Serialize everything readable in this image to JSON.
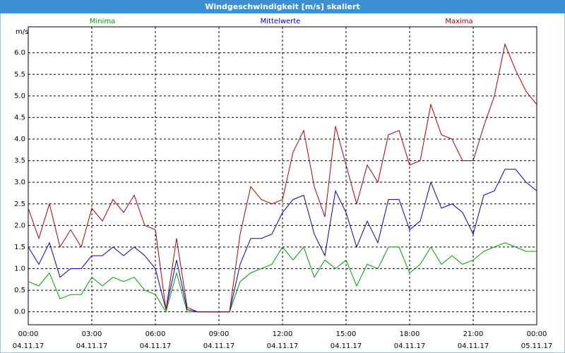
{
  "chart_data": {
    "type": "line",
    "title": "Windgeschwindigkeit [m/s] skaliert",
    "y_label": "m/s",
    "xlim": [
      0,
      24
    ],
    "ylim": [
      -0.3,
      6.6
    ],
    "xticks": [
      {
        "value": 0,
        "label": "00:00"
      },
      {
        "value": 3,
        "label": "03:00"
      },
      {
        "value": 6,
        "label": "06:00"
      },
      {
        "value": 9,
        "label": "09:00"
      },
      {
        "value": 12,
        "label": "12:00"
      },
      {
        "value": 15,
        "label": "15:00"
      },
      {
        "value": 18,
        "label": "18:00"
      },
      {
        "value": 21,
        "label": "21:00"
      },
      {
        "value": 24,
        "label": "00:00"
      }
    ],
    "xtick_dates": [
      "04.11.17",
      "04.11.17",
      "04.11.17",
      "04.11.17",
      "04.11.17",
      "04.11.17",
      "04.11.17",
      "04.11.17",
      "05.11.17"
    ],
    "yticks": [
      {
        "value": 0,
        "label": "0.0"
      },
      0.5,
      {
        "value": 1,
        "label": "1.0"
      },
      1.5,
      {
        "value": 2,
        "label": "2.0"
      },
      2.5,
      {
        "value": 3,
        "label": "3.0"
      },
      3.5,
      {
        "value": 4,
        "label": "4.0"
      },
      4.5,
      {
        "value": 5,
        "label": "5.0"
      },
      5.5,
      {
        "value": 6,
        "label": "6.0"
      }
    ],
    "grid": true,
    "x": [
      0,
      0.5,
      1,
      1.5,
      2,
      2.5,
      3,
      3.5,
      4,
      4.5,
      5,
      5.5,
      6,
      6.5,
      7,
      7.5,
      8,
      8.5,
      9,
      9.5,
      10,
      10.5,
      11,
      11.5,
      12,
      12.5,
      13,
      13.5,
      14,
      14.5,
      15,
      15.5,
      16,
      16.5,
      17,
      17.5,
      18,
      18.5,
      19,
      19.5,
      20,
      20.5,
      21,
      21.5,
      22,
      22.5,
      23,
      23.5,
      24
    ],
    "series": [
      {
        "name": "Minima",
        "color": "#00a000",
        "values": [
          0.7,
          0.6,
          0.9,
          0.3,
          0.4,
          0.4,
          0.8,
          0.6,
          0.8,
          0.7,
          0.8,
          0.5,
          0.4,
          0.0,
          0.9,
          0.0,
          0,
          0,
          0,
          0,
          0.7,
          0.9,
          1.0,
          1.1,
          1.5,
          1.2,
          1.5,
          0.8,
          1.2,
          1.0,
          1.2,
          0.6,
          1.1,
          1.0,
          1.5,
          1.5,
          0.9,
          1.1,
          1.5,
          1.1,
          1.3,
          1.1,
          1.2,
          1.4,
          1.5,
          1.6,
          1.5,
          1.4,
          1.4
        ]
      },
      {
        "name": "Mittelwerte",
        "color": "#0000c0",
        "values": [
          1.5,
          1.1,
          1.6,
          0.8,
          1.0,
          1.0,
          1.3,
          1.3,
          1.5,
          1.3,
          1.5,
          1.3,
          1.0,
          0.05,
          1.2,
          0.05,
          0,
          0,
          0,
          0,
          1.1,
          1.7,
          1.7,
          1.8,
          2.3,
          2.6,
          2.7,
          1.8,
          1.3,
          2.8,
          2.3,
          1.5,
          2.1,
          1.6,
          2.6,
          2.6,
          1.9,
          2.1,
          3.0,
          2.4,
          2.5,
          2.3,
          1.8,
          2.7,
          2.8,
          3.3,
          3.3,
          3.0,
          2.8
        ]
      },
      {
        "name": "Maxima",
        "color": "#b00000",
        "values": [
          2.4,
          1.7,
          2.5,
          1.5,
          1.9,
          1.5,
          2.4,
          2.1,
          2.6,
          2.3,
          2.7,
          2.0,
          1.9,
          0.05,
          1.7,
          0.1,
          0,
          0,
          0,
          0,
          1.8,
          2.9,
          2.6,
          2.5,
          2.6,
          3.7,
          4.2,
          2.9,
          2.2,
          4.3,
          3.4,
          2.5,
          3.4,
          3.0,
          4.1,
          4.2,
          3.4,
          3.5,
          4.8,
          4.1,
          4.0,
          3.5,
          3.5,
          4.3,
          5.0,
          6.2,
          5.6,
          5.1,
          4.8
        ]
      }
    ]
  }
}
